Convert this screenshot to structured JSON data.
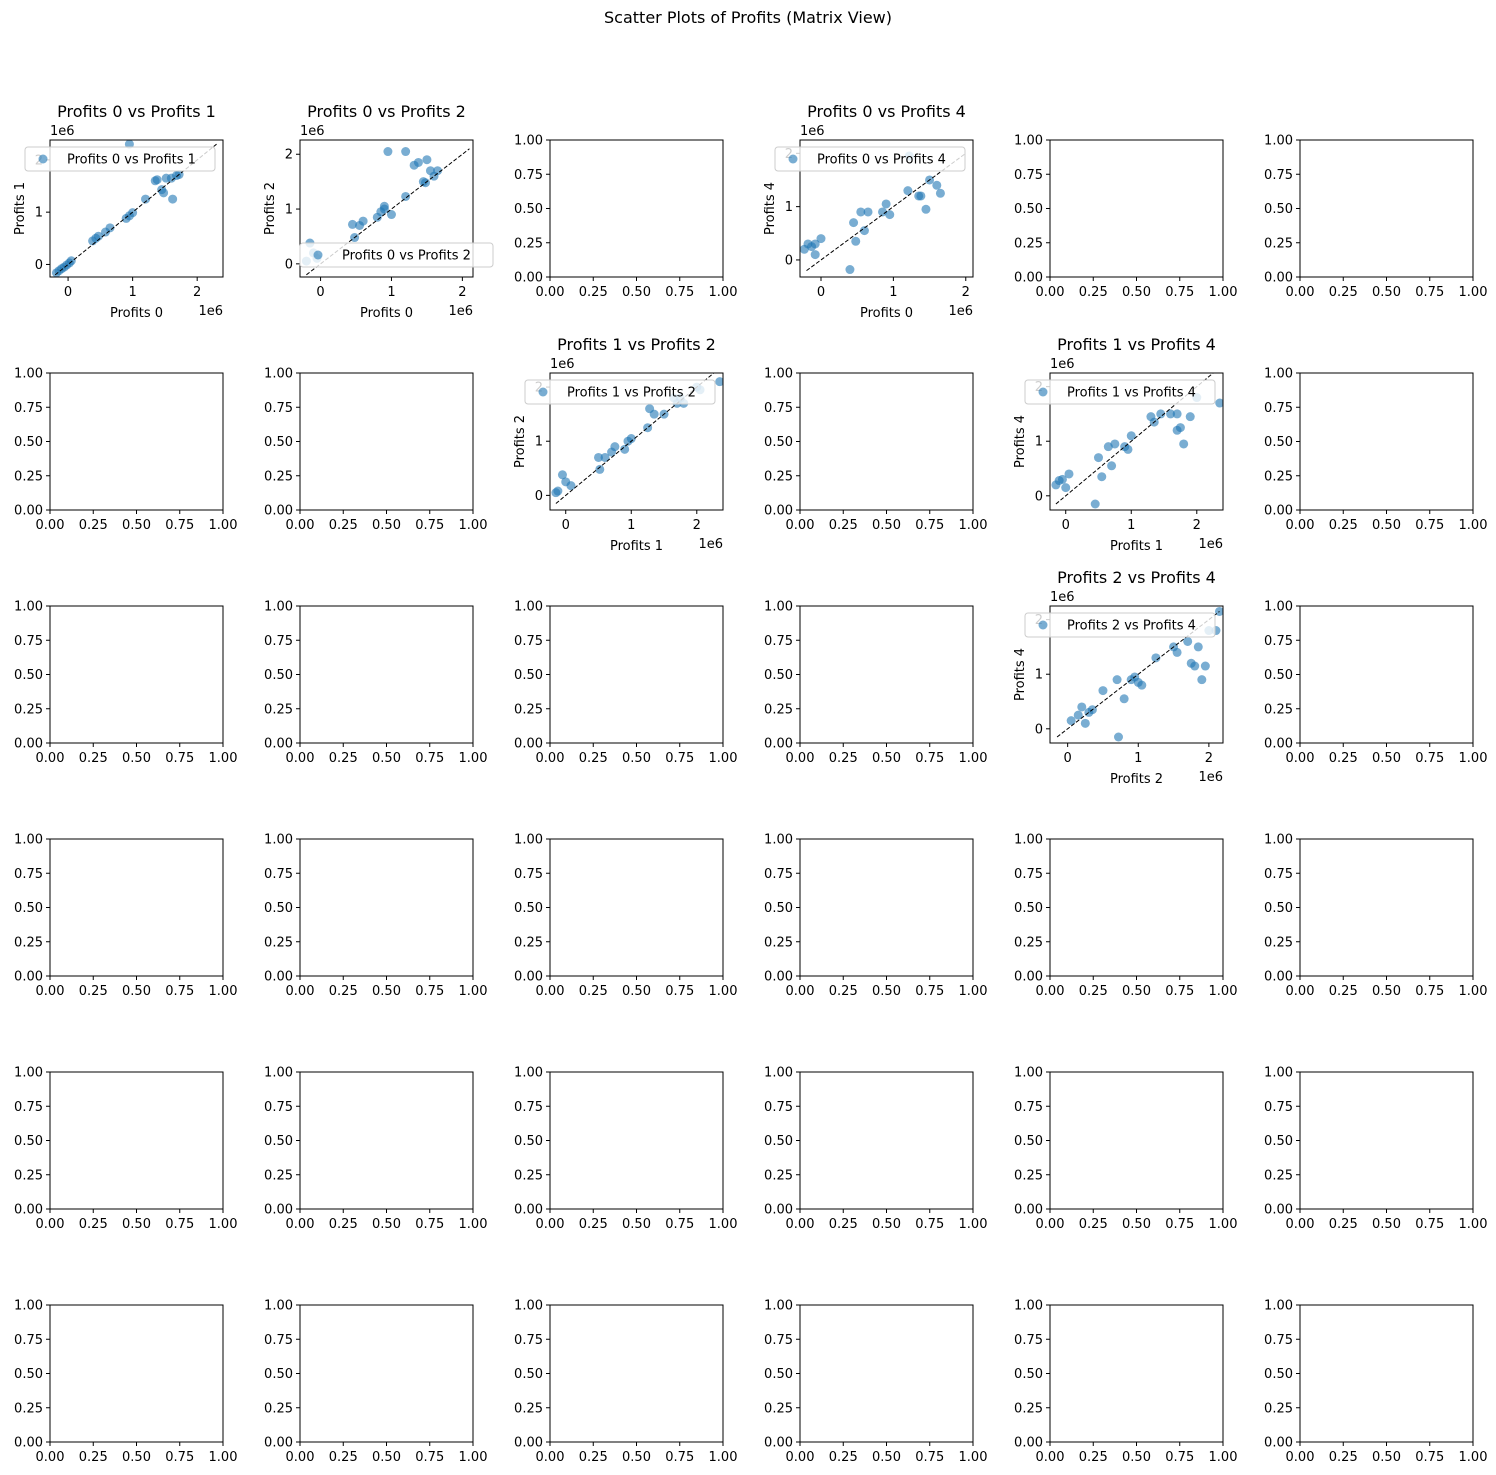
{
  "figure": {
    "suptitle": "Scatter Plots of Profits (Matrix View)",
    "rows": 6,
    "cols": 6,
    "point_color": "#1f77b4",
    "point_alpha": 0.6,
    "diagonal_color": "#000000",
    "empty_ticks": [
      "0.00",
      "0.25",
      "0.50",
      "0.75",
      "1.00"
    ]
  },
  "chart_data": [
    {
      "type": "scatter",
      "row": 0,
      "col": 0,
      "title": "Profits 0 vs Profits 1",
      "xlabel": "Profits 0",
      "ylabel": "Profits 1",
      "legend": "Profits 0 vs Profits 1",
      "legend_loc": "upper right",
      "xlim": [
        -280000,
        2400000
      ],
      "ylim": [
        -240000,
        2380000
      ],
      "xticks": [
        0,
        1000000,
        2000000
      ],
      "xticklabels": [
        "0",
        "1",
        "2"
      ],
      "yticks": [
        0,
        1000000,
        2000000
      ],
      "yticklabels": [
        "0",
        "1",
        "2"
      ],
      "offset_text": "1e6",
      "diagonal": [
        -200000,
        2300000
      ],
      "x": [
        -180000,
        -140000,
        -100000,
        -60000,
        -20000,
        20000,
        50000,
        380000,
        430000,
        470000,
        580000,
        650000,
        900000,
        950000,
        1000000,
        1200000,
        1350000,
        1380000,
        1450000,
        1480000,
        1520000,
        1600000,
        1620000,
        1680000,
        1720000,
        950000
      ],
      "y": [
        -160000,
        -120000,
        -80000,
        -50000,
        -10000,
        30000,
        70000,
        450000,
        500000,
        540000,
        620000,
        700000,
        880000,
        930000,
        990000,
        1250000,
        1600000,
        1620000,
        1430000,
        1370000,
        1650000,
        1650000,
        1250000,
        1700000,
        1720000,
        2300000
      ]
    },
    {
      "type": "scatter",
      "row": 0,
      "col": 1,
      "title": "Profits 0 vs Profits 2",
      "xlabel": "Profits 0",
      "ylabel": "Profits 2",
      "legend": "Profits 0 vs Profits 2",
      "legend_loc": "lower right",
      "xlim": [
        -290000,
        2150000
      ],
      "ylim": [
        -240000,
        2260000
      ],
      "xticks": [
        0,
        1000000,
        2000000
      ],
      "xticklabels": [
        "0",
        "1",
        "2"
      ],
      "yticks": [
        0,
        1000000,
        2000000
      ],
      "yticklabels": [
        "0",
        "1",
        "2"
      ],
      "offset_text": "1e6",
      "diagonal": [
        -200000,
        2100000
      ],
      "x": [
        -200000,
        -150000,
        -100000,
        -50000,
        450000,
        480000,
        550000,
        600000,
        800000,
        850000,
        900000,
        1000000,
        1200000,
        1320000,
        1380000,
        1450000,
        1480000,
        1500000,
        1550000,
        1600000,
        1650000,
        950000,
        1200000,
        900000
      ],
      "y": [
        50000,
        380000,
        200000,
        100000,
        720000,
        480000,
        700000,
        780000,
        850000,
        950000,
        1050000,
        900000,
        1230000,
        1800000,
        1850000,
        1500000,
        1480000,
        1900000,
        1700000,
        1600000,
        1700000,
        2050000,
        2050000,
        1000000
      ]
    },
    {
      "type": "scatter",
      "row": 0,
      "col": 3,
      "title": "Profits 0 vs Profits 4",
      "xlabel": "Profits 0",
      "ylabel": "Profits 4",
      "legend": "Profits 0 vs Profits 4",
      "legend_loc": "upper right",
      "xlim": [
        -290000,
        2100000
      ],
      "ylim": [
        -320000,
        2250000
      ],
      "xticks": [
        0,
        1000000,
        2000000
      ],
      "xticklabels": [
        "0",
        "1",
        "2"
      ],
      "yticks": [
        0,
        1000000,
        2000000
      ],
      "yticklabels": [
        "0",
        "1",
        "2"
      ],
      "offset_text": "1e6",
      "diagonal": [
        -200000,
        2000000
      ],
      "x": [
        -230000,
        -180000,
        -130000,
        -80000,
        0,
        -80000,
        400000,
        450000,
        480000,
        550000,
        650000,
        850000,
        900000,
        950000,
        1200000,
        1350000,
        1380000,
        1450000,
        1500000,
        1600000,
        1650000,
        1220000,
        600000
      ],
      "y": [
        200000,
        300000,
        250000,
        300000,
        400000,
        100000,
        -180000,
        700000,
        350000,
        900000,
        900000,
        900000,
        1050000,
        850000,
        1300000,
        1200000,
        1200000,
        950000,
        1500000,
        1400000,
        1250000,
        1950000,
        550000
      ]
    },
    {
      "type": "scatter",
      "row": 1,
      "col": 2,
      "title": "Profits 1 vs Profits 2",
      "xlabel": "Profits 1",
      "ylabel": "Profits 2",
      "legend": "Profits 1 vs Profits 2",
      "legend_loc": "upper right",
      "xlim": [
        -240000,
        2400000
      ],
      "ylim": [
        -270000,
        2260000
      ],
      "xticks": [
        0,
        1000000,
        2000000
      ],
      "xticklabels": [
        "0",
        "1",
        "2"
      ],
      "yticks": [
        0,
        1000000,
        2000000
      ],
      "yticklabels": [
        "0",
        "1",
        "2"
      ],
      "offset_text": "1e6",
      "diagonal": [
        -150000,
        2350000
      ],
      "x": [
        -150000,
        -120000,
        -50000,
        0,
        80000,
        500000,
        520000,
        600000,
        700000,
        750000,
        900000,
        950000,
        1000000,
        1250000,
        1280000,
        1350000,
        1500000,
        1650000,
        1700000,
        1750000,
        1800000,
        2000000,
        2050000,
        2350000
      ],
      "y": [
        50000,
        80000,
        380000,
        250000,
        180000,
        700000,
        480000,
        700000,
        800000,
        900000,
        850000,
        1000000,
        1050000,
        1250000,
        1600000,
        1500000,
        1500000,
        1800000,
        1700000,
        1800000,
        1700000,
        2000000,
        1950000,
        2100000
      ]
    },
    {
      "type": "scatter",
      "row": 1,
      "col": 4,
      "title": "Profits 1 vs Profits 4",
      "xlabel": "Profits 1",
      "ylabel": "Profits 4",
      "legend": "Profits 1 vs Profits 4",
      "legend_loc": "upper right",
      "xlim": [
        -240000,
        2400000
      ],
      "ylim": [
        -260000,
        2250000
      ],
      "xticks": [
        0,
        1000000,
        2000000
      ],
      "xticklabels": [
        "0",
        "1",
        "2"
      ],
      "yticks": [
        0,
        1000000,
        2000000
      ],
      "yticklabels": [
        "0",
        "1",
        "2"
      ],
      "offset_text": "1e6",
      "diagonal": [
        -150000,
        2350000
      ],
      "x": [
        -150000,
        -100000,
        -50000,
        0,
        50000,
        500000,
        550000,
        650000,
        700000,
        750000,
        900000,
        950000,
        1000000,
        1300000,
        1350000,
        1450000,
        1600000,
        1700000,
        1750000,
        1800000,
        1900000,
        2000000,
        2350000,
        1700000,
        450000
      ],
      "y": [
        200000,
        280000,
        300000,
        150000,
        400000,
        700000,
        350000,
        900000,
        550000,
        950000,
        900000,
        850000,
        1100000,
        1450000,
        1350000,
        1500000,
        1500000,
        1200000,
        1250000,
        950000,
        1450000,
        1800000,
        1700000,
        1500000,
        -150000
      ]
    },
    {
      "type": "scatter",
      "row": 2,
      "col": 4,
      "title": "Profits 2 vs Profits 4",
      "xlabel": "Profits 2",
      "ylabel": "Profits 4",
      "legend": "Profits 2 vs Profits 4",
      "legend_loc": "upper right",
      "xlim": [
        -250000,
        2200000
      ],
      "ylim": [
        -260000,
        2250000
      ],
      "xticks": [
        0,
        1000000,
        2000000
      ],
      "xticklabels": [
        "0",
        "1",
        "2"
      ],
      "yticks": [
        0,
        1000000,
        2000000
      ],
      "yticklabels": [
        "0",
        "1",
        "2"
      ],
      "offset_text": "1e6",
      "diagonal": [
        -150000,
        2150000
      ],
      "x": [
        50000,
        150000,
        200000,
        250000,
        300000,
        350000,
        500000,
        700000,
        720000,
        800000,
        900000,
        950000,
        1000000,
        1050000,
        1250000,
        1500000,
        1550000,
        1700000,
        1750000,
        1800000,
        1850000,
        1900000,
        1950000,
        2000000,
        2100000,
        2150000
      ],
      "y": [
        150000,
        250000,
        400000,
        100000,
        300000,
        350000,
        700000,
        900000,
        -150000,
        550000,
        900000,
        950000,
        850000,
        800000,
        1300000,
        1500000,
        1400000,
        1600000,
        1200000,
        1150000,
        1500000,
        900000,
        1150000,
        1800000,
        1800000,
        2150000
      ]
    }
  ]
}
